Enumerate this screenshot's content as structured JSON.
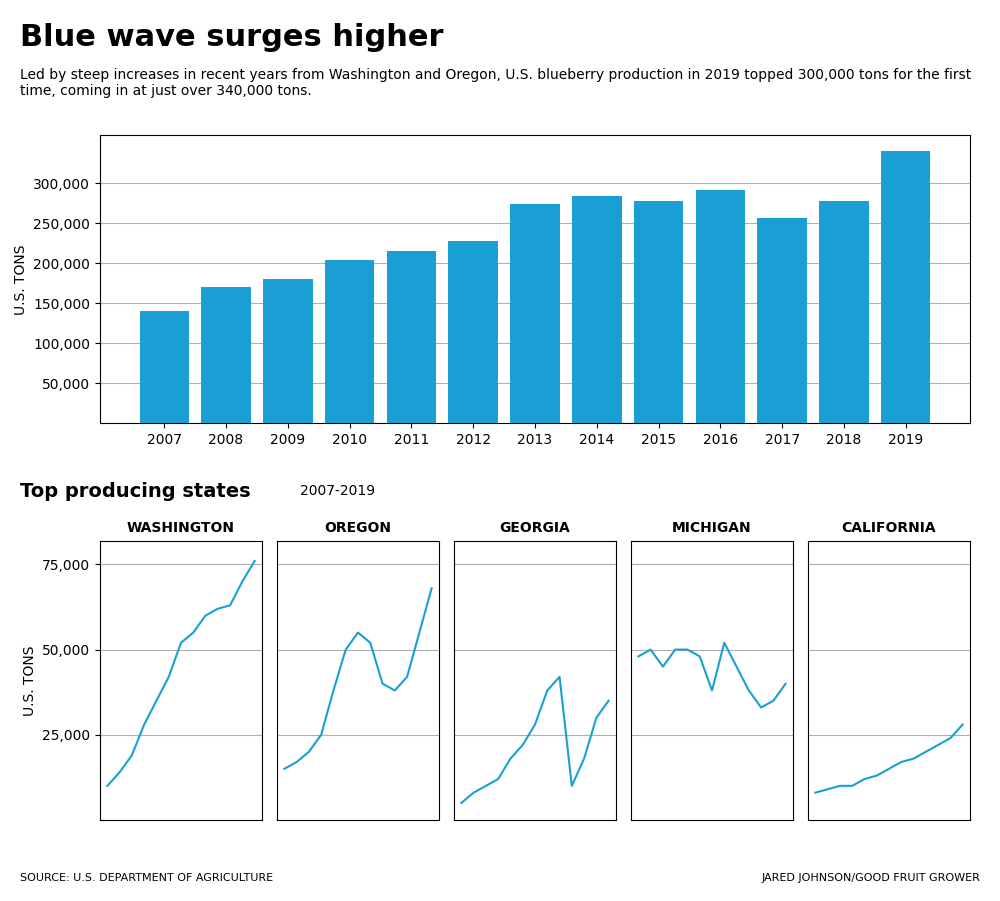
{
  "title": "Blue wave surges higher",
  "subtitle": "Led by steep increases in recent years from Washington and Oregon, U.S. blueberry production in 2019 topped 300,000 tons for the first time, coming in at just over 340,000 tons.",
  "annotations": [
    "Top producing states",
    "2007-2019",
    "SOURCE: U.S. DEPARTMENT OF AGRICULTURE",
    "JARED JOHNSON/GOOD FRUIT GROWER"
  ],
  "chart_data": [
    {
      "type": "bar",
      "ylabel": "U.S. TONS",
      "color": "#1A9FD4",
      "grid": true,
      "categories": [
        "2007",
        "2008",
        "2009",
        "2010",
        "2011",
        "2012",
        "2013",
        "2014",
        "2015",
        "2016",
        "2017",
        "2018",
        "2019"
      ],
      "values": [
        140000,
        170000,
        180000,
        204000,
        215000,
        228000,
        274000,
        284000,
        278000,
        292000,
        256000,
        278000,
        340000
      ],
      "ylim": [
        0,
        360000
      ],
      "yticks": [
        {
          "value": 50000,
          "label": "50,000"
        },
        {
          "value": 100000,
          "label": "100,000"
        },
        {
          "value": 150000,
          "label": "150,000"
        },
        {
          "value": 200000,
          "label": "200,000"
        },
        {
          "value": 250000,
          "label": "250,000"
        },
        {
          "value": 300000,
          "label": "300,000"
        }
      ]
    },
    {
      "type": "line",
      "title": "WASHINGTON",
      "ylabel": "U.S. TONS",
      "color": "#1A9FD4",
      "grid": true,
      "tick_labels": "y",
      "categories": [
        "2007",
        "2008",
        "2009",
        "2010",
        "2011",
        "2012",
        "2013",
        "2014",
        "2015",
        "2016",
        "2017",
        "2018",
        "2019"
      ],
      "values": [
        10000,
        14000,
        19000,
        28000,
        35000,
        42000,
        52000,
        55000,
        60000,
        62000,
        63000,
        70000,
        76000
      ],
      "ylim": [
        0,
        82000
      ],
      "yticks": [
        {
          "value": 25000,
          "label": "25,000"
        },
        {
          "value": 50000,
          "label": "50,000"
        },
        {
          "value": 75000,
          "label": "75,000"
        }
      ]
    },
    {
      "type": "line",
      "title": "OREGON",
      "color": "#1A9FD4",
      "grid": true,
      "tick_labels": false,
      "categories": [
        "2007",
        "2008",
        "2009",
        "2010",
        "2011",
        "2012",
        "2013",
        "2014",
        "2015",
        "2016",
        "2017",
        "2018",
        "2019"
      ],
      "values": [
        15000,
        17000,
        20000,
        25000,
        38000,
        50000,
        55000,
        52000,
        40000,
        38000,
        42000,
        55000,
        68000
      ],
      "ylim": [
        0,
        82000
      ],
      "yticks": [
        {
          "value": 25000,
          "label": "25,000"
        },
        {
          "value": 50000,
          "label": "50,000"
        },
        {
          "value": 75000,
          "label": "75,000"
        }
      ]
    },
    {
      "type": "line",
      "title": "GEORGIA",
      "color": "#1A9FD4",
      "grid": true,
      "tick_labels": false,
      "categories": [
        "2007",
        "2008",
        "2009",
        "2010",
        "2011",
        "2012",
        "2013",
        "2014",
        "2015",
        "2016",
        "2017",
        "2018",
        "2019"
      ],
      "values": [
        5000,
        8000,
        10000,
        12000,
        18000,
        22000,
        28000,
        38000,
        42000,
        10000,
        18000,
        30000,
        35000
      ],
      "ylim": [
        0,
        82000
      ],
      "yticks": [
        {
          "value": 25000,
          "label": "25,000"
        },
        {
          "value": 50000,
          "label": "50,000"
        },
        {
          "value": 75000,
          "label": "75,000"
        }
      ]
    },
    {
      "type": "line",
      "title": "MICHIGAN",
      "color": "#1A9FD4",
      "grid": true,
      "tick_labels": false,
      "categories": [
        "2007",
        "2008",
        "2009",
        "2010",
        "2011",
        "2012",
        "2013",
        "2014",
        "2015",
        "2016",
        "2017",
        "2018",
        "2019"
      ],
      "values": [
        48000,
        50000,
        45000,
        50000,
        50000,
        48000,
        38000,
        52000,
        45000,
        38000,
        33000,
        35000,
        40000
      ],
      "ylim": [
        0,
        82000
      ],
      "yticks": [
        {
          "value": 25000,
          "label": "25,000"
        },
        {
          "value": 50000,
          "label": "50,000"
        },
        {
          "value": 75000,
          "label": "75,000"
        }
      ]
    },
    {
      "type": "line",
      "title": "CALIFORNIA",
      "color": "#1A9FD4",
      "grid": true,
      "tick_labels": false,
      "categories": [
        "2007",
        "2008",
        "2009",
        "2010",
        "2011",
        "2012",
        "2013",
        "2014",
        "2015",
        "2016",
        "2017",
        "2018",
        "2019"
      ],
      "values": [
        8000,
        9000,
        10000,
        10000,
        12000,
        13000,
        15000,
        17000,
        18000,
        20000,
        22000,
        24000,
        28000
      ],
      "ylim": [
        0,
        82000
      ],
      "yticks": [
        {
          "value": 25000,
          "label": "25,000"
        },
        {
          "value": 50000,
          "label": "50,000"
        },
        {
          "value": 75000,
          "label": "75,000"
        }
      ]
    }
  ]
}
